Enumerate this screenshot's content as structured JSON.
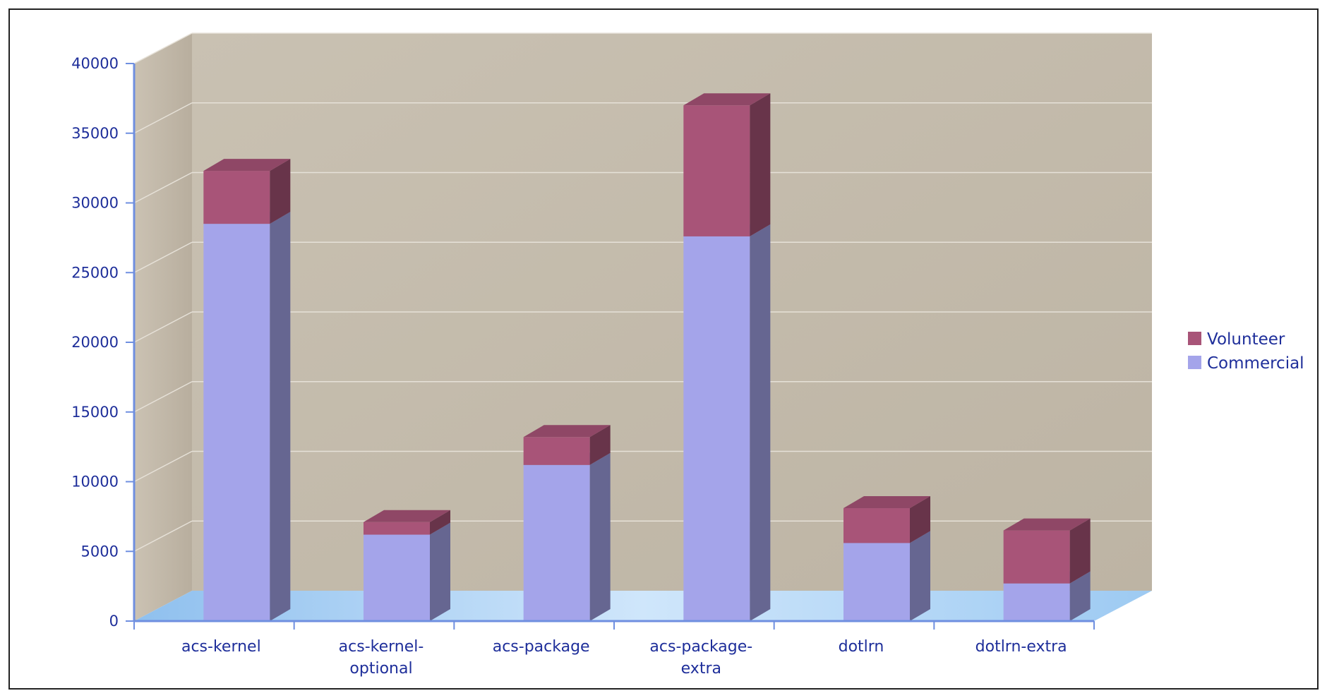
{
  "chart_data": {
    "type": "bar",
    "stacked": true,
    "categories": [
      [
        "acs-kernel"
      ],
      [
        "acs-kernel-",
        "optional"
      ],
      [
        "acs-package"
      ],
      [
        "acs-package-",
        "extra"
      ],
      [
        "dotlrn"
      ],
      [
        "dotlrn-extra"
      ]
    ],
    "series": [
      {
        "name": "Commercial",
        "values": [
          28500,
          6200,
          11200,
          27600,
          5600,
          2700
        ]
      },
      {
        "name": "Volunteer",
        "values": [
          3800,
          900,
          2000,
          9400,
          2500,
          3800
        ]
      }
    ],
    "ylim": [
      0,
      40000
    ],
    "yticks": [
      0,
      5000,
      10000,
      15000,
      20000,
      25000,
      30000,
      35000,
      40000
    ],
    "title": "",
    "xlabel": "",
    "ylabel": "",
    "legend_position": "right",
    "grid": true,
    "colors": {
      "Commercial": "#a4a4ea",
      "Volunteer": "#a85478",
      "wall": "#c4bbab",
      "floor": "#9cc8f0",
      "axis": "#1e2e9a"
    }
  }
}
